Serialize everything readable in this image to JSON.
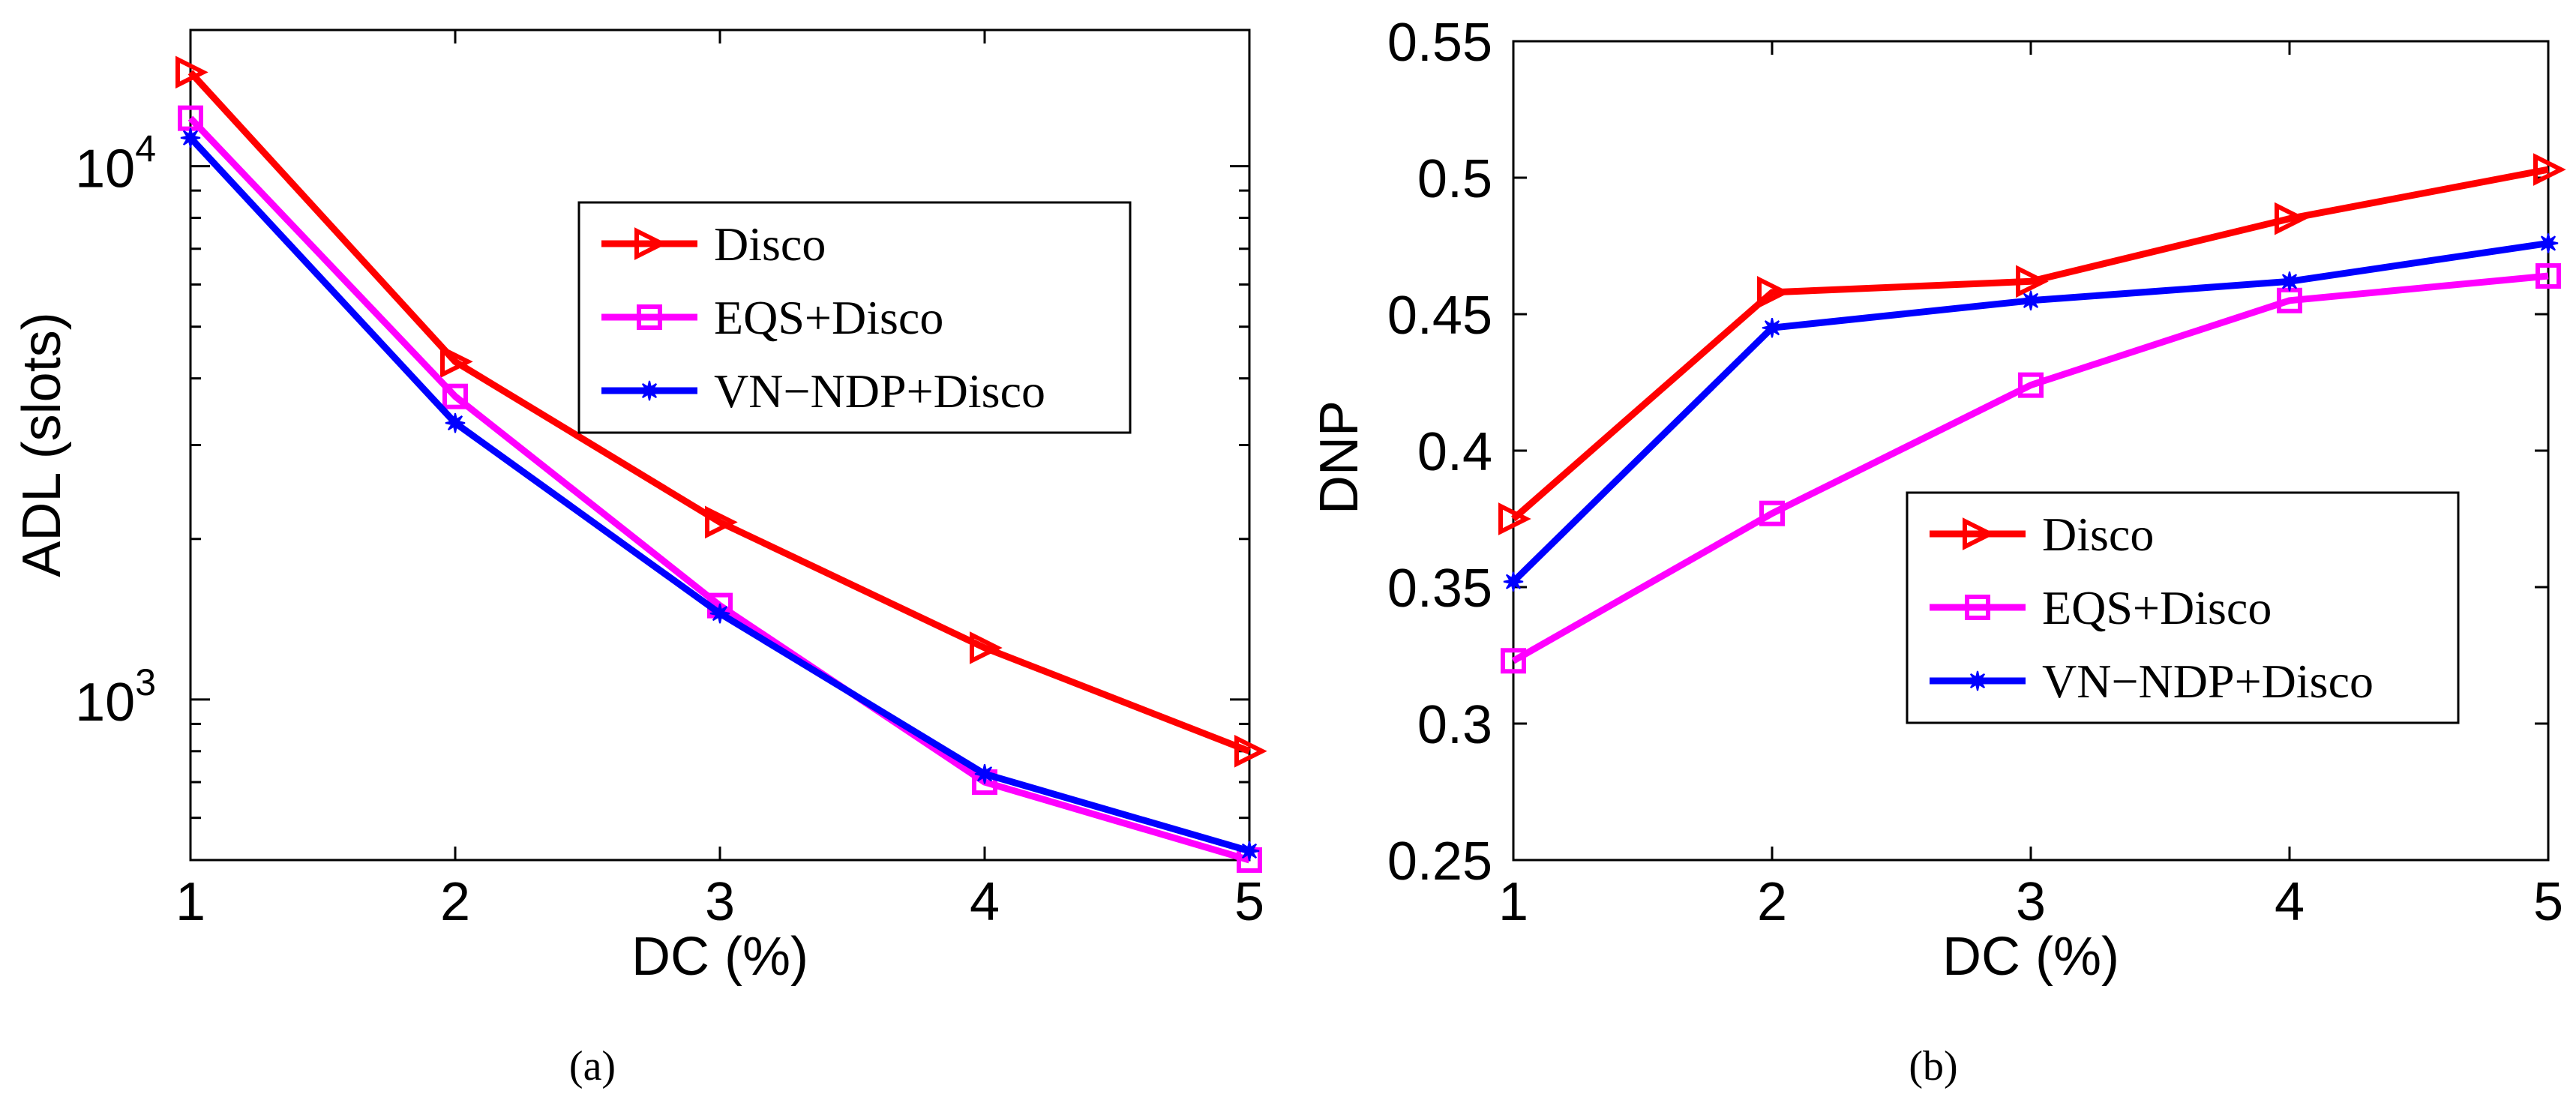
{
  "chart_data": [
    {
      "type": "line",
      "caption": "(a)",
      "xlabel": "DC (%)",
      "ylabel": "ADL (slots)",
      "xscale": "linear",
      "yscale": "log",
      "xlim": [
        1,
        5
      ],
      "ylim": [
        500,
        18000
      ],
      "x": [
        1,
        2,
        3,
        4,
        5
      ],
      "xticks": [
        "1",
        "2",
        "3",
        "4",
        "5"
      ],
      "yticks": [
        {
          "value": 1000,
          "base": "10",
          "exp": "3"
        },
        {
          "value": 10000,
          "base": "10",
          "exp": "4"
        }
      ],
      "legend_position": "upper-middle",
      "series": [
        {
          "name": "Disco",
          "color": "#ff0000",
          "marker": "triangle-right",
          "values": [
            15000,
            4300,
            2150,
            1250,
            800
          ]
        },
        {
          "name": "EQS+Disco",
          "color": "#ff00ff",
          "marker": "square",
          "values": [
            12300,
            3700,
            1500,
            700,
            500
          ]
        },
        {
          "name": "VN−NDP+Disco",
          "color": "#0000ff",
          "marker": "star",
          "values": [
            11300,
            3300,
            1450,
            725,
            520
          ]
        }
      ]
    },
    {
      "type": "line",
      "caption": "(b)",
      "xlabel": "DC (%)",
      "ylabel": "DNP",
      "xscale": "linear",
      "yscale": "linear",
      "xlim": [
        1,
        5
      ],
      "ylim": [
        0.25,
        0.55
      ],
      "x": [
        1,
        2,
        3,
        4,
        5
      ],
      "xticks": [
        "1",
        "2",
        "3",
        "4",
        "5"
      ],
      "yticks": [
        "0.25",
        "0.3",
        "0.35",
        "0.4",
        "0.45",
        "0.5",
        "0.55"
      ],
      "legend_position": "lower-right",
      "series": [
        {
          "name": "Disco",
          "color": "#ff0000",
          "marker": "triangle-right",
          "values": [
            0.375,
            0.458,
            0.462,
            0.485,
            0.503
          ]
        },
        {
          "name": "EQS+Disco",
          "color": "#ff00ff",
          "marker": "square",
          "values": [
            0.323,
            0.377,
            0.424,
            0.455,
            0.464
          ]
        },
        {
          "name": "VN−NDP+Disco",
          "color": "#0000ff",
          "marker": "star",
          "values": [
            0.352,
            0.445,
            0.455,
            0.462,
            0.476
          ]
        }
      ]
    }
  ]
}
